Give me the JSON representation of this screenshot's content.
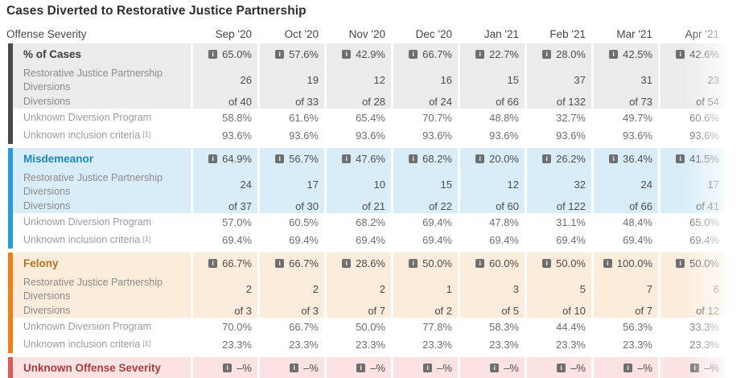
{
  "title": "Cases Diverted to Restorative Justice Partnership",
  "table": {
    "corner_label": "Offense Severity",
    "columns": [
      "Sep '20",
      "Oct '20",
      "Nov '20",
      "Dec '20",
      "Jan '21",
      "Feb '21",
      "Mar '21",
      "Apr '21"
    ],
    "labels": {
      "rjp_diversions": "Restorative Justice Partnership Diversions",
      "diversions": "Diversions",
      "unknown_program": "Unknown Diversion Program",
      "unknown_criteria": "Unknown inclusion criteria",
      "footnote_marker": "[1]"
    },
    "sections": [
      {
        "title": "% of Cases",
        "accent": "#4a4a4a",
        "tint": "#ebebeb",
        "title_color": "#3d3d3d",
        "pct_of_cases": [
          "65.0%",
          "57.6%",
          "42.9%",
          "66.7%",
          "22.7%",
          "28.0%",
          "42.5%",
          "42.6%"
        ],
        "rjp_diversions": [
          "26",
          "19",
          "12",
          "16",
          "15",
          "37",
          "31",
          "23"
        ],
        "of_totals": [
          "of 40",
          "of 33",
          "of 28",
          "of 24",
          "of 66",
          "of 132",
          "of 73",
          "of 54"
        ],
        "unknown_program": [
          "58.8%",
          "61.6%",
          "65.4%",
          "70.7%",
          "48.8%",
          "32.7%",
          "49.7%",
          "60.6%"
        ],
        "unknown_criteria": [
          "93.6%",
          "93.6%",
          "93.6%",
          "93.6%",
          "93.6%",
          "93.6%",
          "93.6%",
          "93.6%"
        ]
      },
      {
        "title": "Misdemeanor",
        "accent": "#2a9cd5",
        "tint": "#d9edf8",
        "title_color": "#1e87b9",
        "pct_of_cases": [
          "64.9%",
          "56.7%",
          "47.6%",
          "68.2%",
          "20.0%",
          "26.2%",
          "36.4%",
          "41.5%"
        ],
        "rjp_diversions": [
          "24",
          "17",
          "10",
          "15",
          "12",
          "32",
          "24",
          "17"
        ],
        "of_totals": [
          "of 37",
          "of 30",
          "of 21",
          "of 22",
          "of 60",
          "of 122",
          "of 66",
          "of 41"
        ],
        "unknown_program": [
          "57.0%",
          "60.5%",
          "68.2%",
          "69.4%",
          "47.8%",
          "31.1%",
          "48.4%",
          "65.0%"
        ],
        "unknown_criteria": [
          "69.4%",
          "69.4%",
          "69.4%",
          "69.4%",
          "69.4%",
          "69.4%",
          "69.4%",
          "69.4%"
        ]
      },
      {
        "title": "Felony",
        "accent": "#e8821d",
        "tint": "#fcecdc",
        "title_color": "#b5731f",
        "pct_of_cases": [
          "66.7%",
          "66.7%",
          "28.6%",
          "50.0%",
          "60.0%",
          "50.0%",
          "100.0%",
          "50.0%"
        ],
        "rjp_diversions": [
          "2",
          "2",
          "2",
          "1",
          "3",
          "5",
          "7",
          "6"
        ],
        "of_totals": [
          "of 3",
          "of 3",
          "of 7",
          "of 2",
          "of 5",
          "of 10",
          "of 7",
          "of 12"
        ],
        "unknown_program": [
          "70.0%",
          "66.7%",
          "50.0%",
          "77.8%",
          "58.3%",
          "44.4%",
          "56.3%",
          "33.3%"
        ],
        "unknown_criteria": [
          "23.3%",
          "23.3%",
          "23.3%",
          "23.3%",
          "23.3%",
          "23.3%",
          "23.3%",
          "23.3%"
        ]
      }
    ],
    "footer": {
      "title": "Unknown Offense Severity",
      "accent": "#d95b5b",
      "tint": "#fbe3e3",
      "title_color": "#ae3c3c",
      "pct_of_cases": [
        "–%",
        "–%",
        "–%",
        "–%",
        "–%",
        "–%",
        "–%",
        "–%"
      ]
    },
    "info_icon_glyph": "i"
  }
}
